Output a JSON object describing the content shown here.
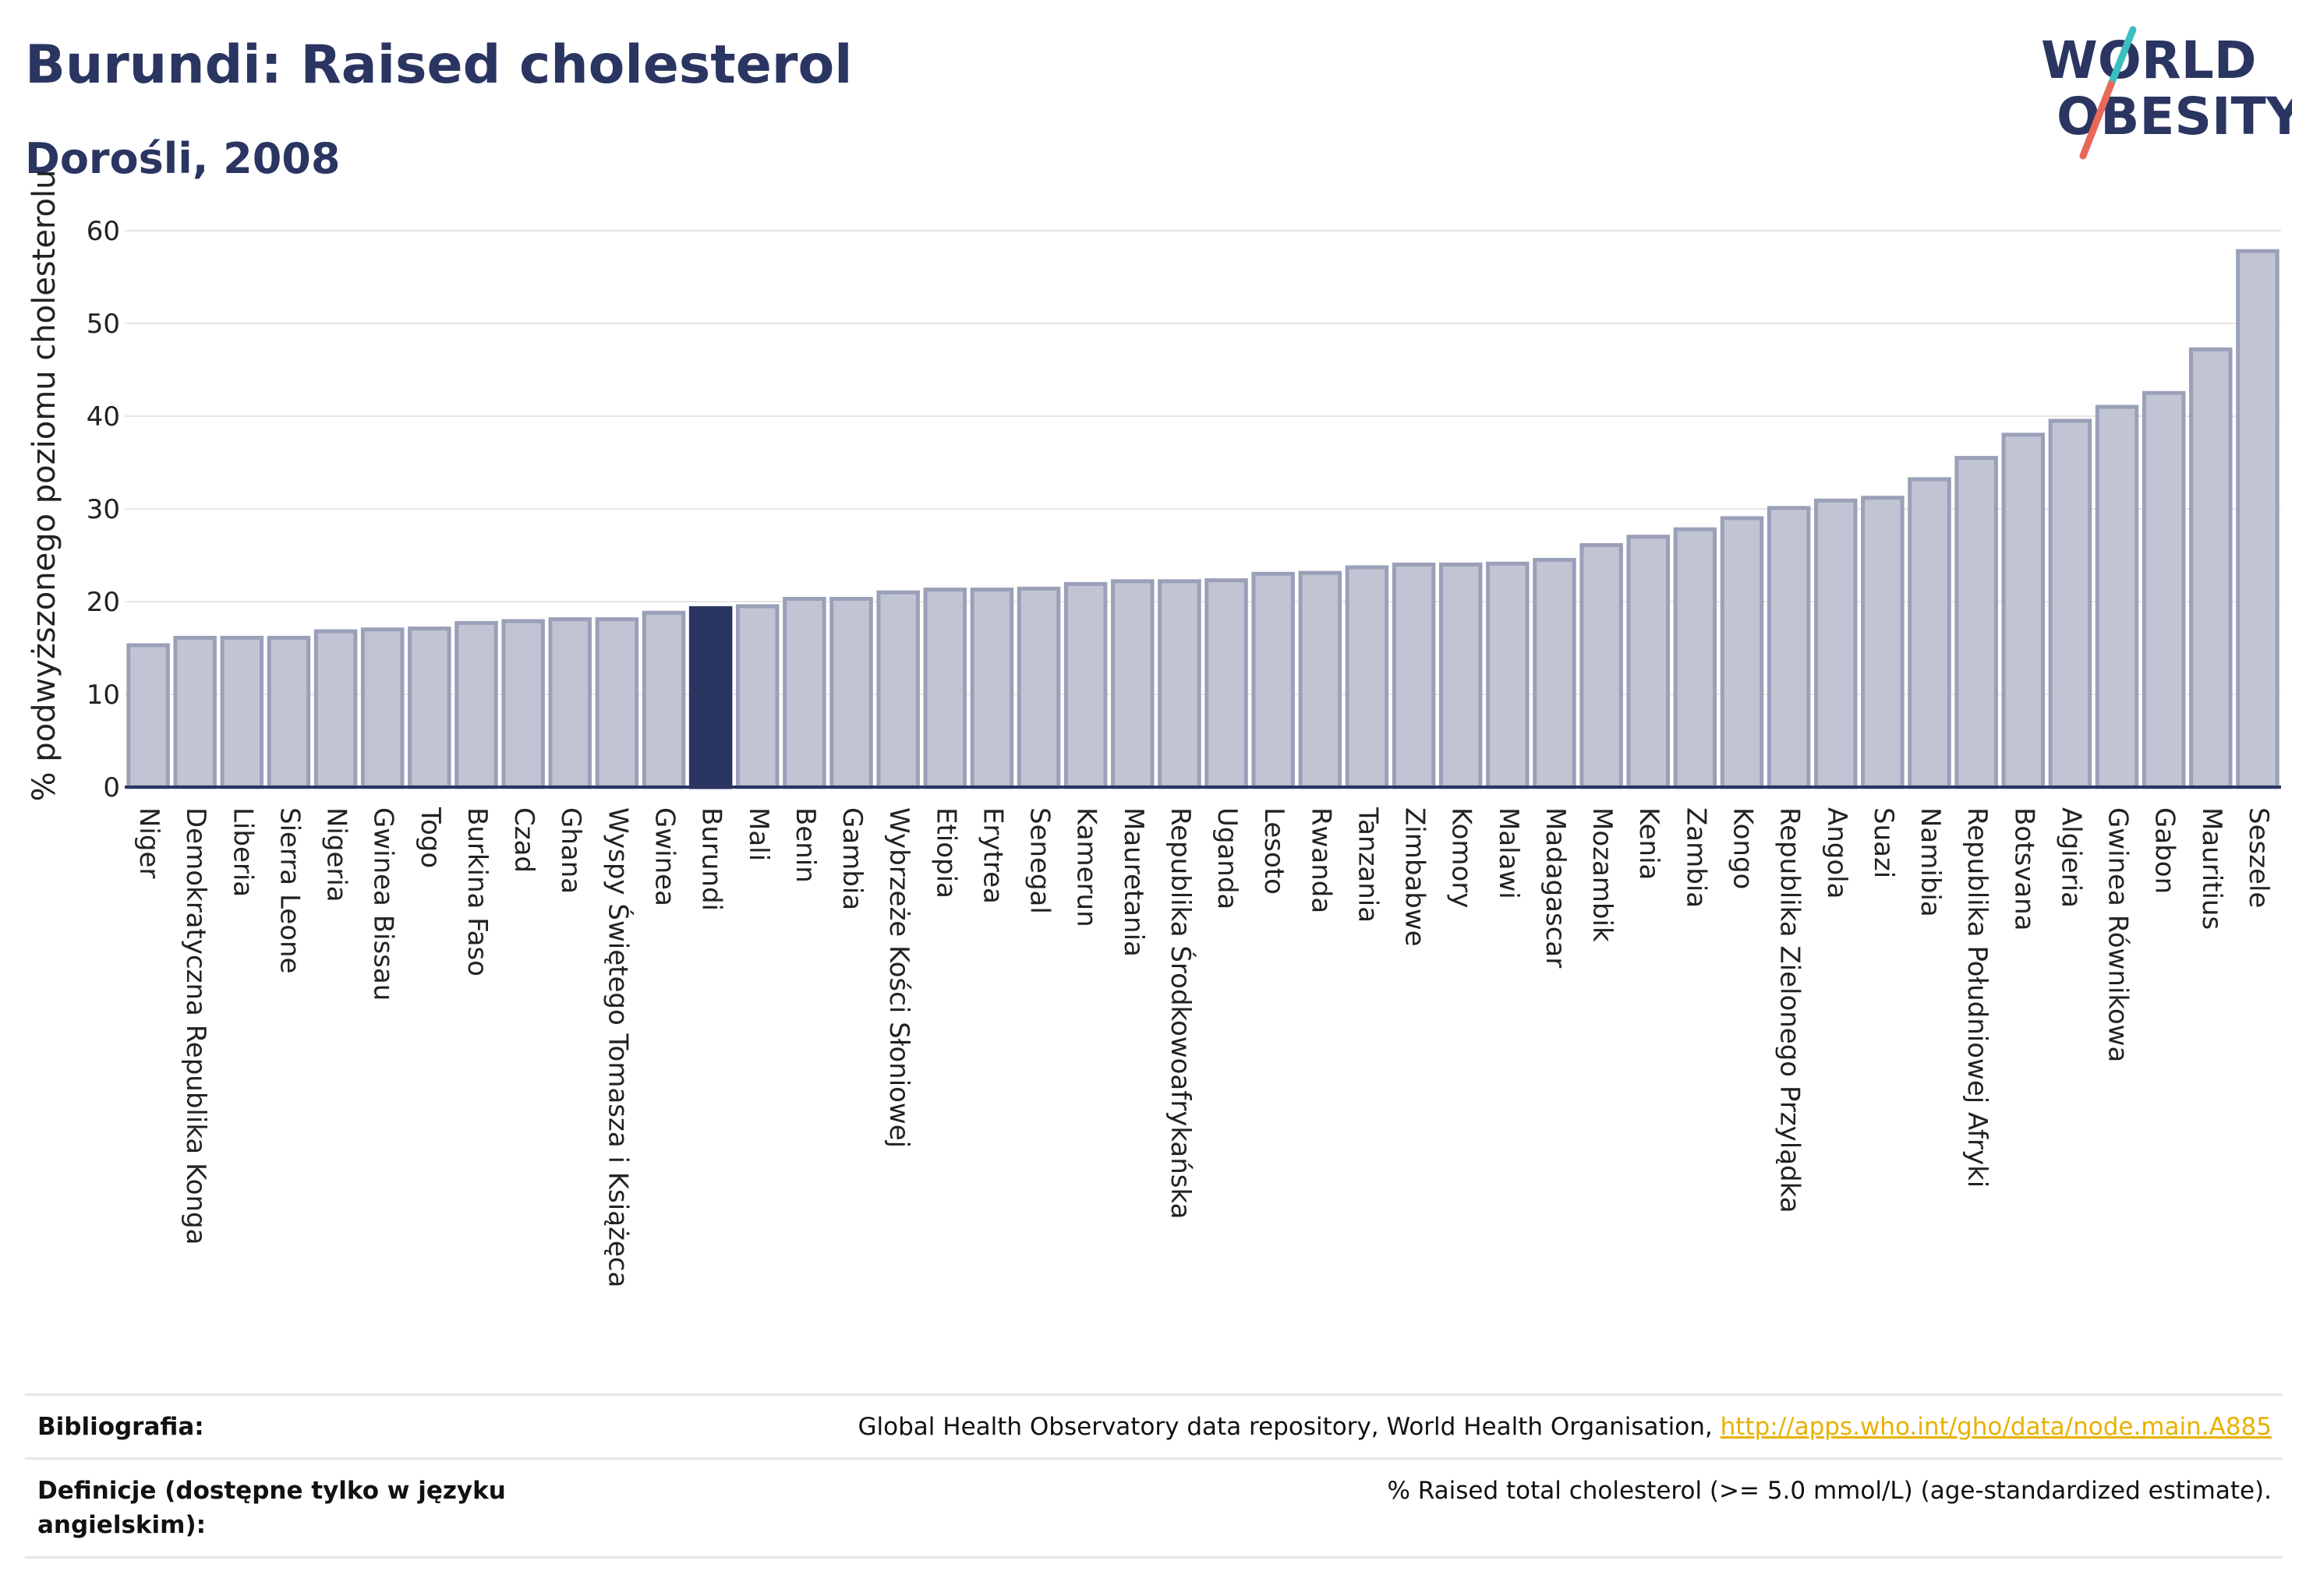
{
  "header": {
    "title": "Burundi: Raised cholesterol",
    "subtitle": "Dorośli, 2008"
  },
  "logo": {
    "line1": "WORLD",
    "line2": "OBESITY",
    "colors": {
      "text": "#2b3561",
      "slash_teal": "#3bbfc1",
      "slash_coral": "#e8685a"
    }
  },
  "colors": {
    "bar_default": "#c0c4d3",
    "bar_stroke": "#9aa0b8",
    "bar_highlight": "#2b3561",
    "gridline": "#e6e6e6",
    "axis": "#2b3561"
  },
  "chart_data": {
    "type": "bar",
    "ylabel": "% podwyższonego poziomu cholesterolu",
    "ylim": [
      0,
      60
    ],
    "yticks": [
      0,
      10,
      20,
      30,
      40,
      50,
      60
    ],
    "grid": true,
    "highlight": "Burundi",
    "categories": [
      "Niger",
      "Demokratyczna Republika Konga",
      "Liberia",
      "Sierra Leone",
      "Nigeria",
      "Gwinea Bissau",
      "Togo",
      "Burkina Faso",
      "Czad",
      "Ghana",
      "Wyspy Świętego Tomasza i Książęca",
      "Gwinea",
      "Burundi",
      "Mali",
      "Benin",
      "Gambia",
      "Wybrzeże Kości Słoniowej",
      "Etiopia",
      "Erytrea",
      "Senegal",
      "Kamerun",
      "Mauretania",
      "Republika Środkowoafrykańska",
      "Uganda",
      "Lesoto",
      "Rwanda",
      "Tanzania",
      "Zimbabwe",
      "Komory",
      "Malawi",
      "Madagascar",
      "Mozambik",
      "Kenia",
      "Zambia",
      "Kongo",
      "Republika Zielonego Przylądka",
      "Angola",
      "Suazi",
      "Namibia",
      "Republika Południowej Afryki",
      "Botsvana",
      "Algieria",
      "Gwinea Równikowa",
      "Gabon",
      "Mauritius",
      "Seszele"
    ],
    "values": [
      15.3,
      16.1,
      16.1,
      16.1,
      16.8,
      17.0,
      17.1,
      17.7,
      17.9,
      18.1,
      18.1,
      18.8,
      19.3,
      19.5,
      20.3,
      20.3,
      21.0,
      21.3,
      21.3,
      21.4,
      21.9,
      22.2,
      22.2,
      22.3,
      23.0,
      23.1,
      23.7,
      24.0,
      24.0,
      24.1,
      24.5,
      26.1,
      27.0,
      27.8,
      29.0,
      30.1,
      30.9,
      31.2,
      33.2,
      35.5,
      38.0,
      39.5,
      41.0,
      42.5,
      47.2,
      57.8
    ]
  },
  "footer": {
    "bibliography_label": "Bibliografia:",
    "bibliography_text": "Global Health Observatory data repository, World Health Organisation, ",
    "bibliography_link": "http://apps.who.int/gho/data/node.main.A885",
    "definitions_label_line1": "Definicje (dostępne tylko w języku",
    "definitions_label_line2": "angielskim):",
    "definitions_text": "% Raised total cholesterol (>= 5.0 mmol/L) (age-standardized estimate)."
  }
}
